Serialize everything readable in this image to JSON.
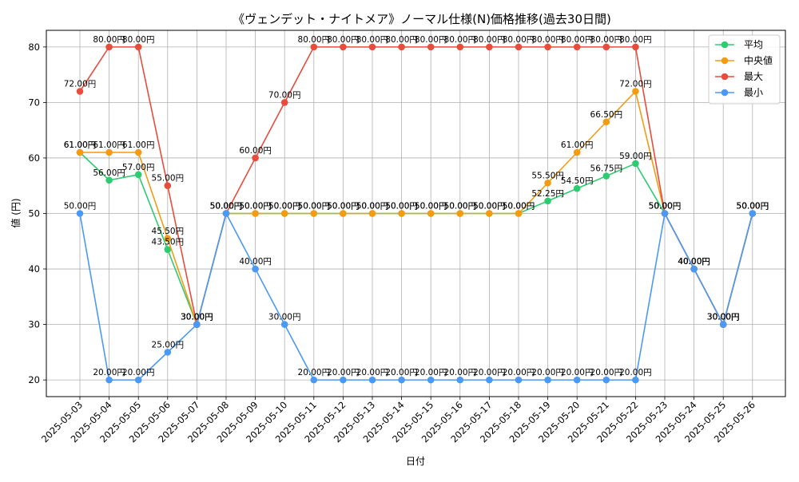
{
  "chart_data": {
    "type": "line",
    "title": "《ヴェンデット・ナイトメア》ノーマル仕様(N)価格推移(過去30日間)",
    "xlabel": "日付",
    "ylabel": "値 (円)",
    "ylim": [
      17,
      83
    ],
    "yticks": [
      20,
      30,
      40,
      50,
      60,
      70,
      80
    ],
    "grid": true,
    "legend_position": "top-right",
    "label_suffix": "円",
    "x": [
      "2025-05-03",
      "2025-05-04",
      "2025-05-05",
      "2025-05-06",
      "2025-05-07",
      "2025-05-08",
      "2025-05-09",
      "2025-05-10",
      "2025-05-11",
      "2025-05-12",
      "2025-05-13",
      "2025-05-14",
      "2025-05-15",
      "2025-05-16",
      "2025-05-17",
      "2025-05-18",
      "2025-05-19",
      "2025-05-20",
      "2025-05-21",
      "2025-05-22",
      "2025-05-23",
      "2025-05-24",
      "2025-05-25",
      "2025-05-26"
    ],
    "series": [
      {
        "name": "平均",
        "color": "#2ecc71",
        "values": [
          61,
          56,
          57,
          43.5,
          30,
          50,
          50,
          50,
          50,
          50,
          50,
          50,
          50,
          50,
          50,
          50,
          52.25,
          54.5,
          56.75,
          59,
          50,
          40,
          30,
          50
        ]
      },
      {
        "name": "中央値",
        "color": "#f39c12",
        "values": [
          61,
          61,
          61,
          45.5,
          30,
          50,
          50,
          50,
          50,
          50,
          50,
          50,
          50,
          50,
          50,
          50,
          55.5,
          61,
          66.5,
          72,
          50,
          40,
          30,
          50
        ]
      },
      {
        "name": "最大",
        "color": "#e74c3c",
        "values": [
          72,
          80,
          80,
          55,
          30,
          50,
          60,
          70,
          80,
          80,
          80,
          80,
          80,
          80,
          80,
          80,
          80,
          80,
          80,
          80,
          50,
          40,
          30,
          50
        ]
      },
      {
        "name": "最小",
        "color": "#4a9af5",
        "values": [
          50,
          20,
          20,
          25,
          30,
          50,
          40,
          30,
          20,
          20,
          20,
          20,
          20,
          20,
          20,
          20,
          20,
          20,
          20,
          20,
          50,
          40,
          30,
          50
        ]
      }
    ]
  }
}
